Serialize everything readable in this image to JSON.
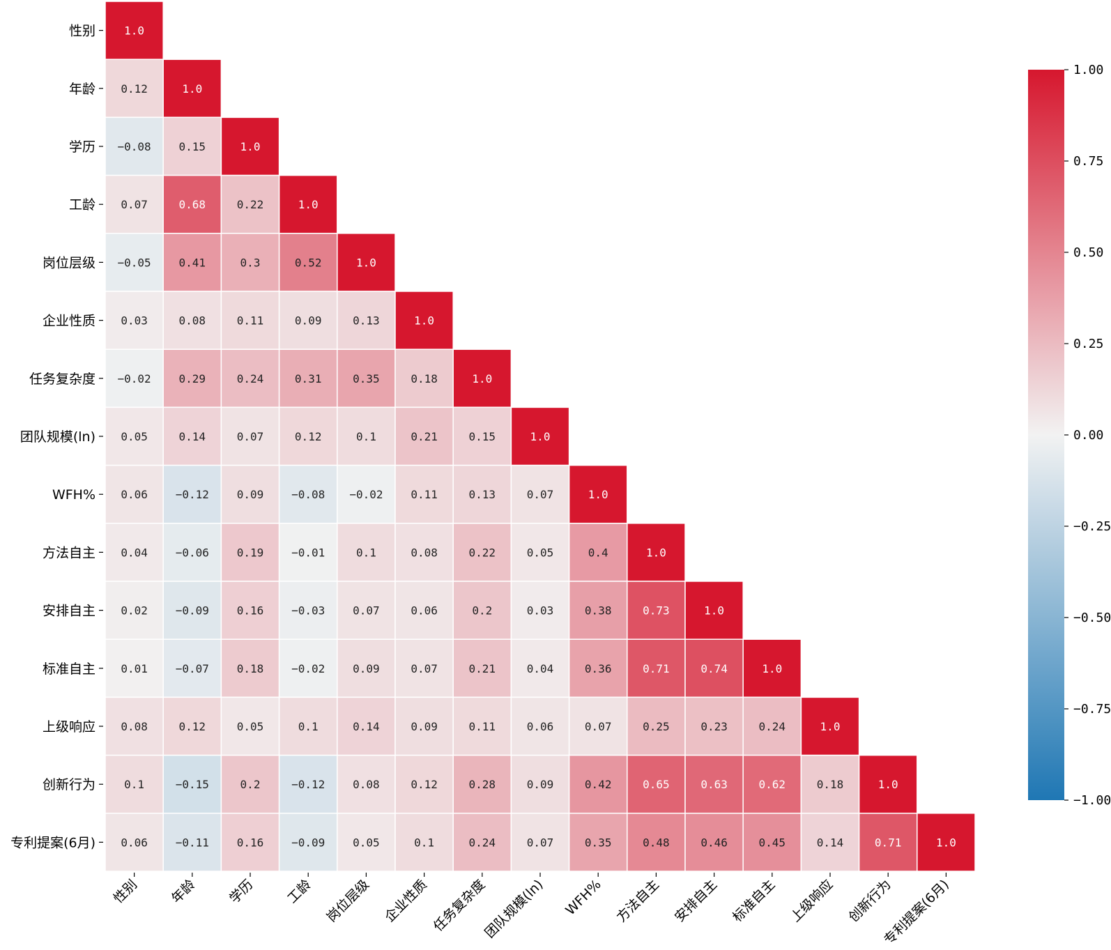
{
  "chart_data": {
    "type": "heatmap",
    "variables": [
      "性别",
      "年龄",
      "学历",
      "工龄",
      "岗位层级",
      "企业性质",
      "任务复杂度",
      "团队规模(ln)",
      "WFH%",
      "方法自主",
      "安排自主",
      "标准自主",
      "上级响应",
      "创新行为",
      "专利提案(6月)"
    ],
    "matrix": [
      [
        "1.0"
      ],
      [
        "0.12",
        "1.0"
      ],
      [
        "-0.08",
        "0.15",
        "1.0"
      ],
      [
        "0.07",
        "0.68",
        "0.22",
        "1.0"
      ],
      [
        "-0.05",
        "0.41",
        "0.3",
        "0.52",
        "1.0"
      ],
      [
        "0.03",
        "0.08",
        "0.11",
        "0.09",
        "0.13",
        "1.0"
      ],
      [
        "-0.02",
        "0.29",
        "0.24",
        "0.31",
        "0.35",
        "0.18",
        "1.0"
      ],
      [
        "0.05",
        "0.14",
        "0.07",
        "0.12",
        "0.1",
        "0.21",
        "0.15",
        "1.0"
      ],
      [
        "0.06",
        "-0.12",
        "0.09",
        "-0.08",
        "-0.02",
        "0.11",
        "0.13",
        "0.07",
        "1.0"
      ],
      [
        "0.04",
        "-0.06",
        "0.19",
        "-0.01",
        "0.1",
        "0.08",
        "0.22",
        "0.05",
        "0.4",
        "1.0"
      ],
      [
        "0.02",
        "-0.09",
        "0.16",
        "-0.03",
        "0.07",
        "0.06",
        "0.2",
        "0.03",
        "0.38",
        "0.73",
        "1.0"
      ],
      [
        "0.01",
        "-0.07",
        "0.18",
        "-0.02",
        "0.09",
        "0.07",
        "0.21",
        "0.04",
        "0.36",
        "0.71",
        "0.74",
        "1.0"
      ],
      [
        "0.08",
        "0.12",
        "0.05",
        "0.1",
        "0.14",
        "0.09",
        "0.11",
        "0.06",
        "0.07",
        "0.25",
        "0.23",
        "0.24",
        "1.0"
      ],
      [
        "0.1",
        "-0.15",
        "0.2",
        "-0.12",
        "0.08",
        "0.12",
        "0.28",
        "0.09",
        "0.42",
        "0.65",
        "0.63",
        "0.62",
        "0.18",
        "1.0"
      ],
      [
        "0.06",
        "-0.11",
        "0.16",
        "-0.09",
        "0.05",
        "0.1",
        "0.24",
        "0.07",
        "0.35",
        "0.48",
        "0.46",
        "0.45",
        "0.14",
        "0.71",
        "1.0"
      ]
    ],
    "colorbar": {
      "range": [
        -1,
        1
      ],
      "ticks": [
        1.0,
        0.75,
        0.5,
        0.25,
        0.0,
        -0.25,
        -0.5,
        -0.75,
        -1.0
      ],
      "tick_labels": [
        "1.00",
        "0.75",
        "0.50",
        "0.25",
        "0.00",
        "−0.25",
        "−0.50",
        "−0.75",
        "−1.00"
      ]
    },
    "colors": {
      "negative": "#1f77b4",
      "neutral": "#f2f2f2",
      "positive": "#d6172e"
    },
    "mask": "upper-triangle"
  }
}
